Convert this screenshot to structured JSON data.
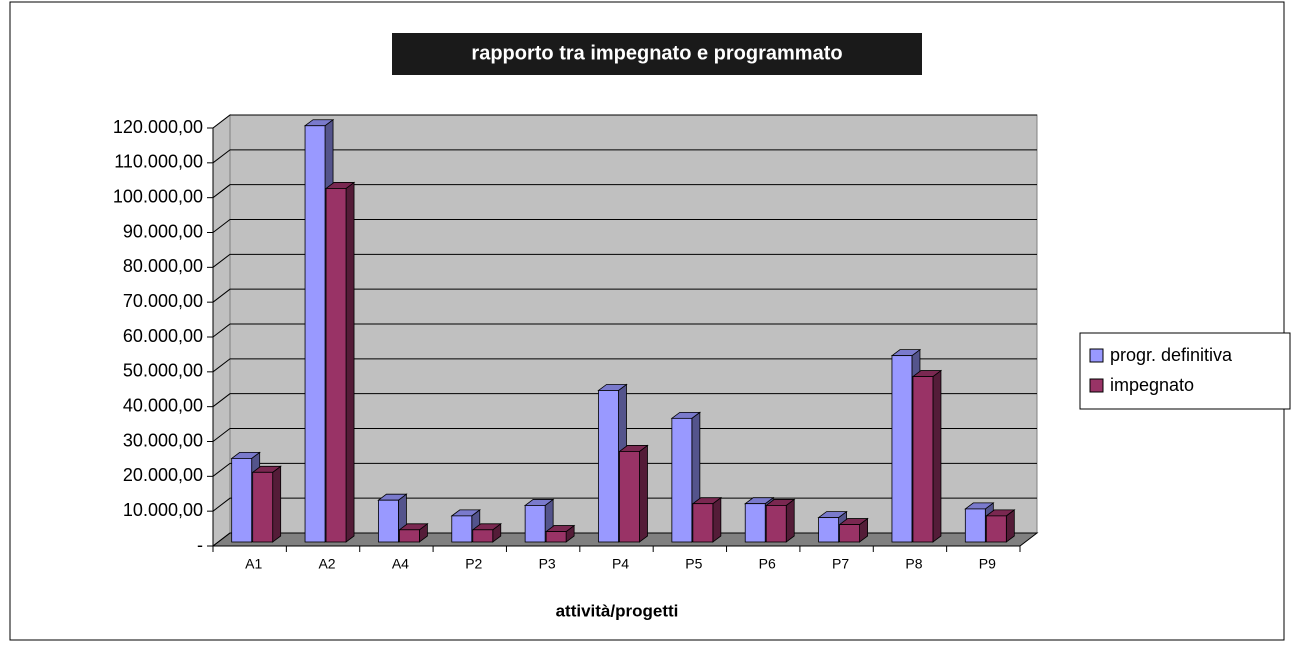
{
  "chart_data": {
    "type": "bar3d",
    "title": "rapporto tra impegnato e programmato",
    "x_label": "attività/progetti",
    "categories": [
      "A1",
      "A2",
      "A4",
      "P2",
      "P3",
      "P4",
      "P5",
      "P6",
      "P7",
      "P8",
      "P9"
    ],
    "series": [
      {
        "name": "progr. definitiva",
        "color": "#9999ff",
        "values": [
          24000,
          119500,
          12000,
          7500,
          10500,
          43500,
          35500,
          11000,
          7000,
          53500,
          9500
        ]
      },
      {
        "name": "impegnato",
        "color": "#993366",
        "values": [
          20000,
          101500,
          3500,
          3500,
          3000,
          26000,
          11000,
          10500,
          5000,
          47500,
          7500
        ]
      }
    ],
    "ylim": [
      0,
      120000
    ],
    "yticks": [
      {
        "value": 0,
        "label": "-"
      },
      {
        "value": 10000,
        "label": "10.000,00"
      },
      {
        "value": 20000,
        "label": "20.000,00"
      },
      {
        "value": 30000,
        "label": "30.000,00"
      },
      {
        "value": 40000,
        "label": "40.000,00"
      },
      {
        "value": 50000,
        "label": "50.000,00"
      },
      {
        "value": 60000,
        "label": "60.000,00"
      },
      {
        "value": 70000,
        "label": "70.000,00"
      },
      {
        "value": 80000,
        "label": "80.000,00"
      },
      {
        "value": 90000,
        "label": "90.000,00"
      },
      {
        "value": 100000,
        "label": "100.000,00"
      },
      {
        "value": 110000,
        "label": "110.000,00"
      },
      {
        "value": 120000,
        "label": "120.000,00"
      }
    ],
    "grid": true,
    "legend": "right"
  }
}
